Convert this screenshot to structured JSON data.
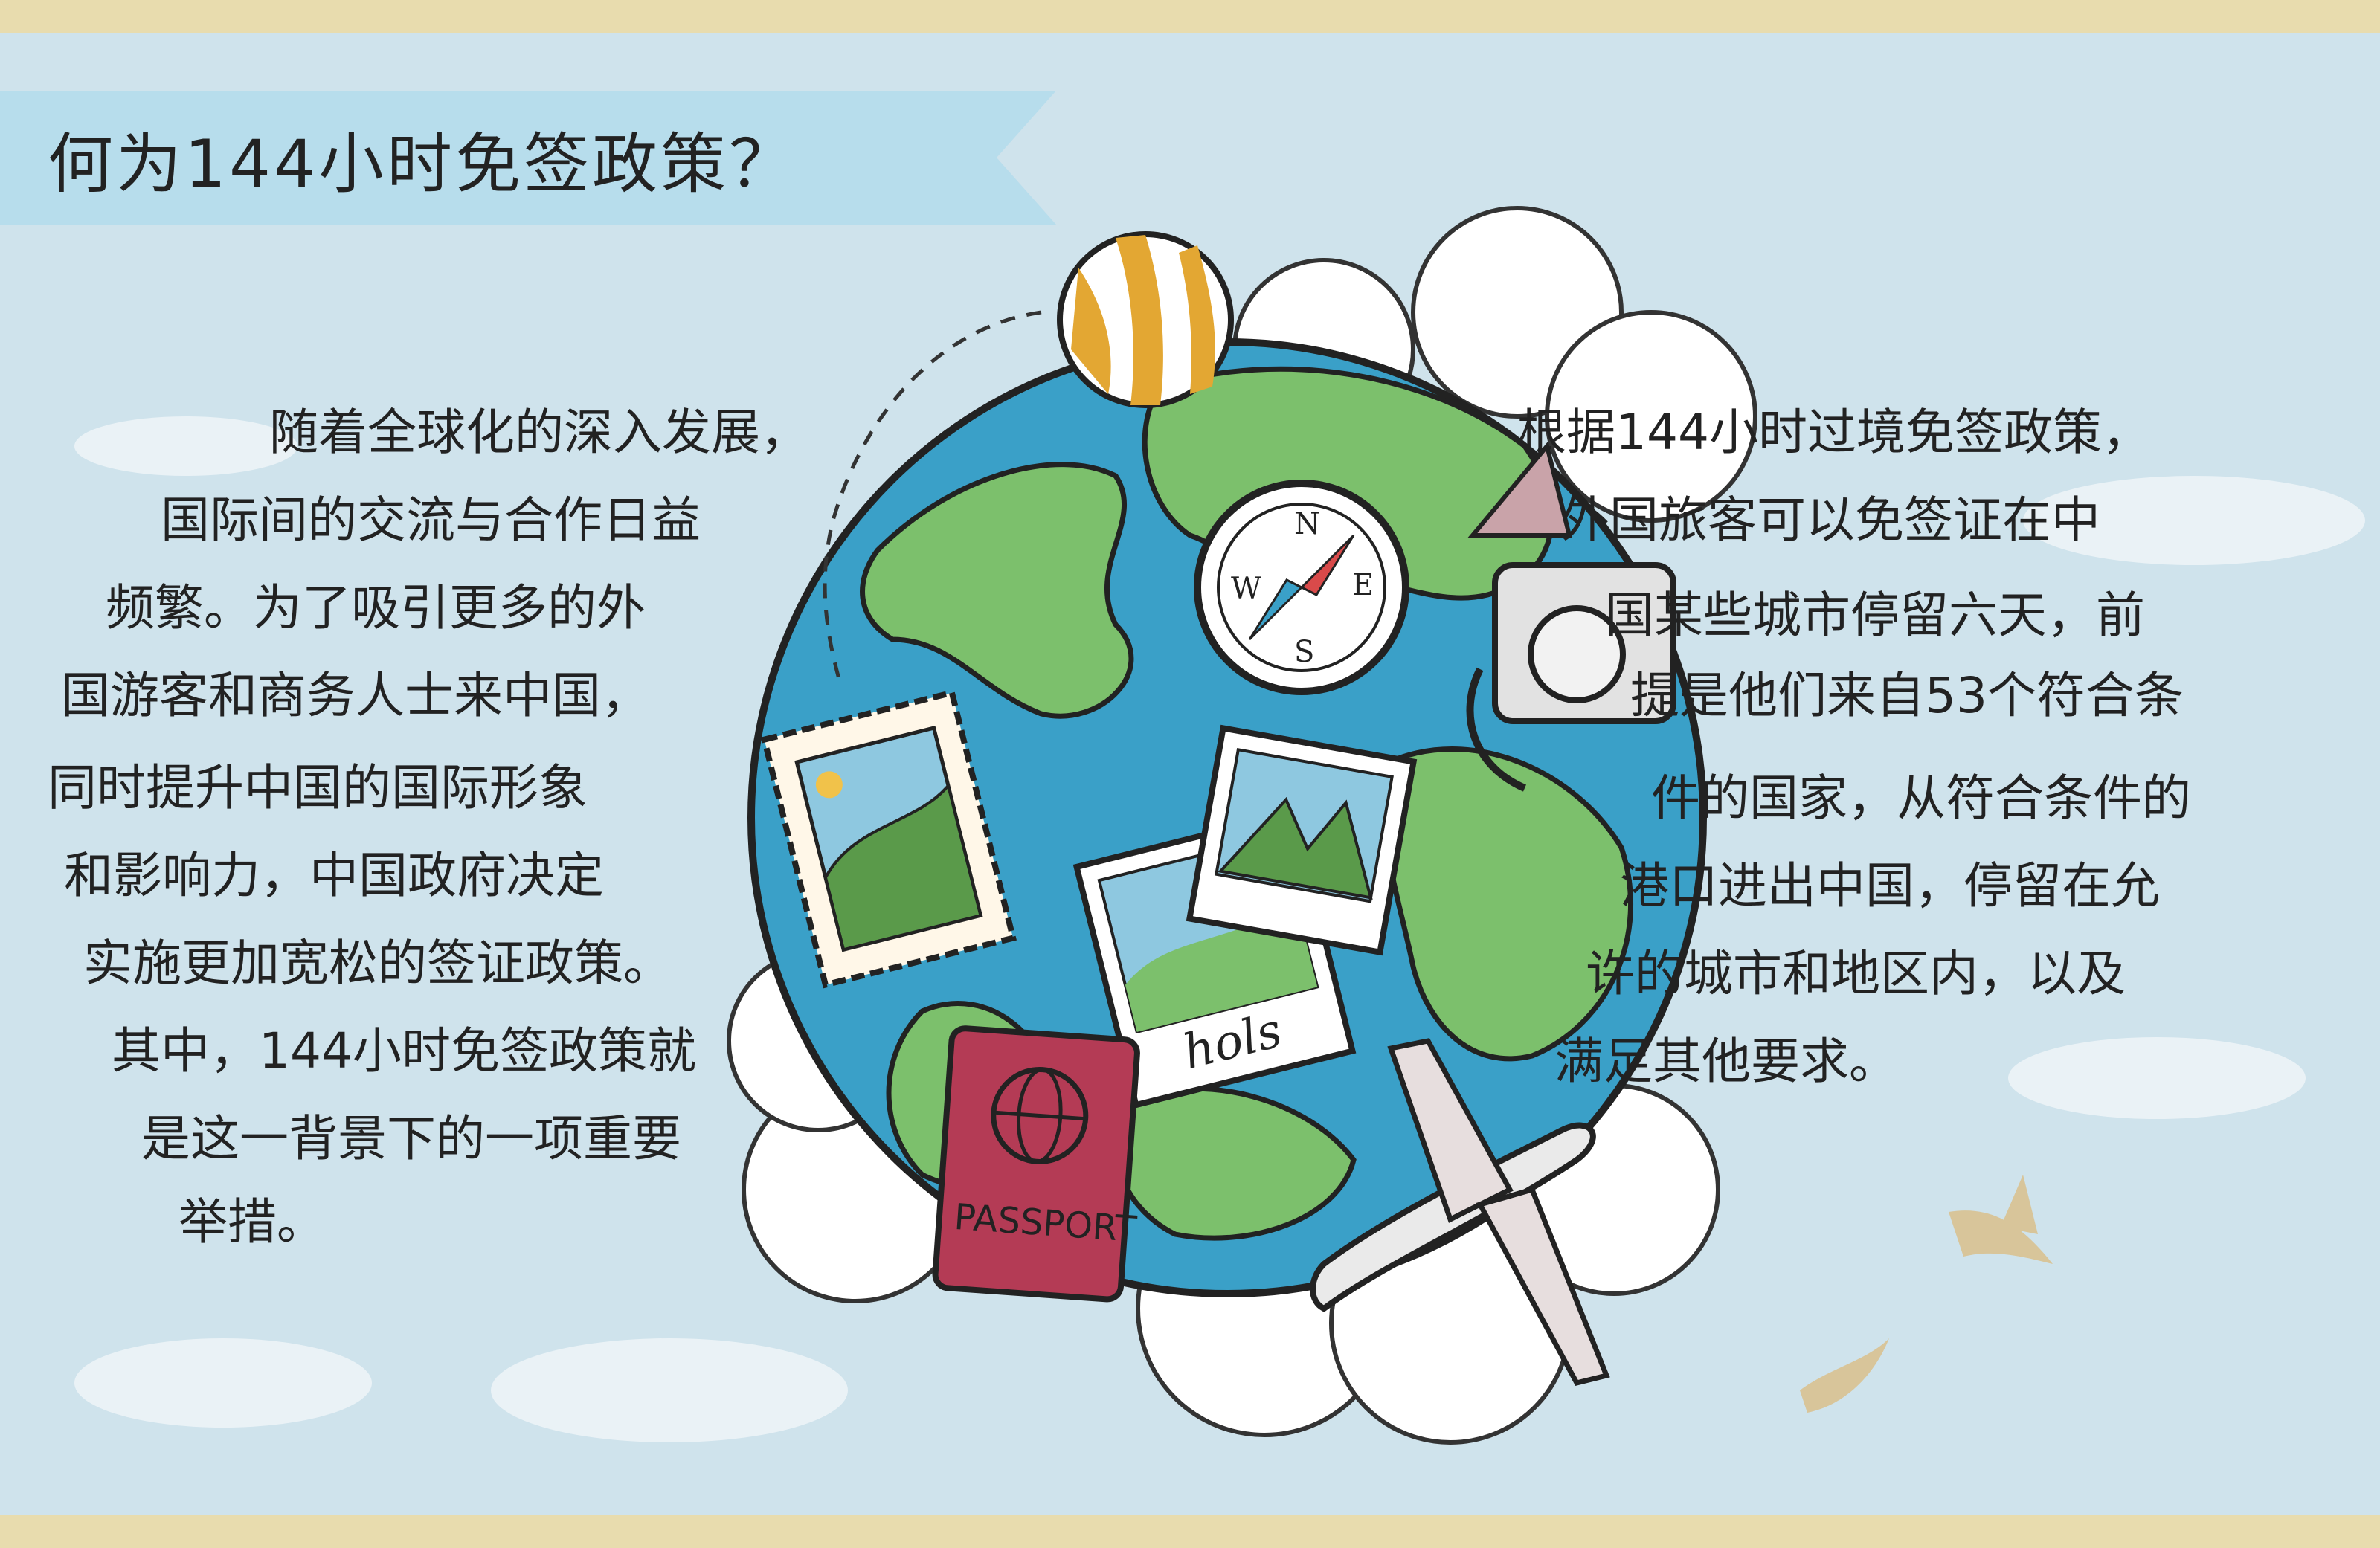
{
  "title": "何为144小时免签政策？",
  "left_text": [
    "随着全球化的深入发展，",
    "国际间的交流与合作日益",
    "频繁。为了吸引更多的外",
    "国游客和商务人士来中国，",
    "同时提升中国的国际形象",
    "和影响力，中国政府决定",
    "实施更加宽松的签证政策。",
    "其中，144小时免签政策就",
    "是这一背景下的一项重要",
    "举措。"
  ],
  "right_text": [
    "根据144小时过境免签政策，",
    "外国旅客可以免签证在中",
    "国某些城市停留六天，前",
    "提是他们来自53个符合条",
    "件的国家，从符合条件的",
    "港口进出中国，停留在允",
    "许的城市和地区内，以及",
    "满足其他要求。"
  ],
  "illustration": {
    "passport_label": "PASSPORT",
    "photo_caption": "hols",
    "compass": {
      "n": "N",
      "e": "E",
      "s": "S",
      "w": "W"
    }
  },
  "colors": {
    "background": "#cfe3ec",
    "ocean": "#3aa0c8",
    "land": "#7cc06c",
    "passport": "#b43b55",
    "ribbon": "#b5dcec"
  }
}
